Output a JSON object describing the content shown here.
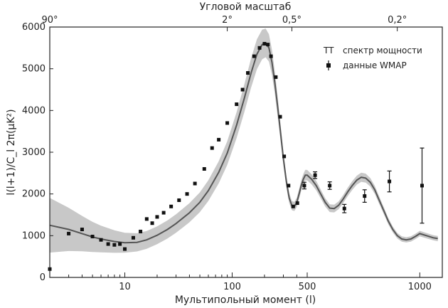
{
  "chart_data": {
    "type": "scatter",
    "title": "",
    "top_axis": {
      "label": "Угловой масштаб",
      "ticks": [
        {
          "at": 2,
          "label": "90°"
        },
        {
          "at": 90,
          "label": "2°"
        },
        {
          "at": 360,
          "label": "0,5°"
        },
        {
          "at": 900,
          "label": "0,2°"
        }
      ]
    },
    "xlabel": "Мультипольный момент (l)",
    "ylabel": "l(l+1)/C_l 2π(μK²)",
    "xscale": "log-linear",
    "xlim": [
      2,
      1100
    ],
    "ylim": [
      0,
      6000
    ],
    "x_ticks": [
      {
        "at": 10,
        "label": "10"
      },
      {
        "at": 100,
        "label": "100"
      },
      {
        "at": 500,
        "label": "500"
      },
      {
        "at": 1000,
        "label": "1000"
      }
    ],
    "y_ticks": [
      0,
      1000,
      2000,
      3000,
      4000,
      5000,
      6000
    ],
    "legend": {
      "position": "top-right",
      "entries": [
        {
          "marker": "TT",
          "label": "спектр мощности"
        },
        {
          "marker": "errorbar",
          "label": "данные WMAP"
        }
      ]
    },
    "series": [
      {
        "name": "спектр мощности",
        "kind": "line",
        "x": [
          2,
          3,
          4,
          5,
          6,
          8,
          10,
          13,
          16,
          20,
          25,
          30,
          40,
          50,
          60,
          75,
          90,
          110,
          130,
          150,
          170,
          190,
          205,
          220,
          235,
          250,
          265,
          280,
          300,
          320,
          340,
          360,
          380,
          400,
          420,
          440,
          460,
          480,
          500,
          520,
          540,
          560,
          580,
          600,
          620,
          640,
          660,
          680,
          700,
          720,
          740,
          760,
          780,
          800,
          820,
          840,
          860,
          880,
          900,
          920,
          940,
          960,
          980,
          1000,
          1030,
          1060,
          1080
        ],
        "y": [
          1250,
          1150,
          1050,
          970,
          920,
          860,
          830,
          840,
          900,
          1010,
          1150,
          1290,
          1550,
          1800,
          2080,
          2520,
          2980,
          3650,
          4300,
          4900,
          5350,
          5580,
          5620,
          5500,
          5150,
          4650,
          4100,
          3550,
          2850,
          2300,
          1900,
          1720,
          1700,
          1800,
          2000,
          2200,
          2350,
          2450,
          2450,
          2350,
          2200,
          2000,
          1800,
          1660,
          1650,
          1730,
          1880,
          2050,
          2200,
          2330,
          2400,
          2380,
          2280,
          2100,
          1850,
          1600,
          1350,
          1150,
          1000,
          920,
          900,
          920,
          980,
          1050,
          1000,
          950,
          930
        ]
      },
      {
        "name": "данные WMAP",
        "kind": "errorbar",
        "points": [
          {
            "x": 2,
            "y": 200
          },
          {
            "x": 3,
            "y": 1050
          },
          {
            "x": 4,
            "y": 1150
          },
          {
            "x": 5,
            "y": 980
          },
          {
            "x": 6,
            "y": 900
          },
          {
            "x": 7,
            "y": 800
          },
          {
            "x": 8,
            "y": 780
          },
          {
            "x": 9,
            "y": 800
          },
          {
            "x": 10,
            "y": 680
          },
          {
            "x": 12,
            "y": 950
          },
          {
            "x": 14,
            "y": 1100
          },
          {
            "x": 16,
            "y": 1400
          },
          {
            "x": 18,
            "y": 1300
          },
          {
            "x": 20,
            "y": 1450
          },
          {
            "x": 23,
            "y": 1550
          },
          {
            "x": 27,
            "y": 1700
          },
          {
            "x": 32,
            "y": 1850
          },
          {
            "x": 38,
            "y": 2000
          },
          {
            "x": 45,
            "y": 2250
          },
          {
            "x": 55,
            "y": 2600
          },
          {
            "x": 65,
            "y": 3100
          },
          {
            "x": 75,
            "y": 3300
          },
          {
            "x": 90,
            "y": 3700
          },
          {
            "x": 110,
            "y": 4150
          },
          {
            "x": 125,
            "y": 4500
          },
          {
            "x": 140,
            "y": 4900
          },
          {
            "x": 160,
            "y": 5300
          },
          {
            "x": 180,
            "y": 5500
          },
          {
            "x": 200,
            "y": 5600
          },
          {
            "x": 215,
            "y": 5580
          },
          {
            "x": 230,
            "y": 5300
          },
          {
            "x": 255,
            "y": 4800
          },
          {
            "x": 280,
            "y": 3850
          },
          {
            "x": 305,
            "y": 2900
          },
          {
            "x": 335,
            "y": 2200
          },
          {
            "x": 370,
            "y": 1700
          },
          {
            "x": 405,
            "y": 1780
          },
          {
            "x": 470,
            "y": 2200,
            "err": 80
          },
          {
            "x": 535,
            "y": 2450,
            "err": 80
          },
          {
            "x": 600,
            "y": 2200,
            "err": 90
          },
          {
            "x": 665,
            "y": 1650,
            "err": 100
          },
          {
            "x": 755,
            "y": 1950,
            "err": 150
          },
          {
            "x": 865,
            "y": 2300,
            "err": 250
          },
          {
            "x": 1010,
            "y": 2200,
            "err": 900
          }
        ]
      }
    ]
  }
}
